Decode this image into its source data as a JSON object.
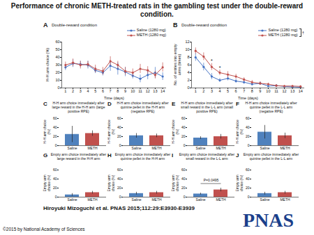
{
  "title": "Performance of chronic METH-treated rats in the gambling test under the double-reward condition.",
  "credit": "Hiroyuki Mizoguchi et al. PNAS 2015;112:29:E3930-E3939",
  "copyright": "©2015 by National Academy of Sciences",
  "logo": "PNAS",
  "chart_data": [
    {
      "type": "line",
      "panel": "A",
      "subtitle": "Double-reward condition",
      "x_label": "Time (days)",
      "y_label": "H-H arm choice (%)",
      "x": [
        1,
        2,
        3,
        4,
        5,
        6,
        7,
        8,
        9,
        10,
        11,
        12,
        13,
        14
      ],
      "xlim": [
        0.5,
        14.5
      ],
      "xticks": [
        1,
        2,
        3,
        4,
        5,
        6,
        7,
        8,
        9,
        10,
        11,
        12,
        13,
        14
      ],
      "ylim": [
        0,
        60
      ],
      "yticks": [
        0,
        10,
        20,
        30,
        40,
        50,
        60
      ],
      "series": [
        {
          "name": "Saline (1280 mg)",
          "color": "#4472c4",
          "marker": "circle",
          "values": [
            27,
            32,
            31,
            30,
            23,
            20,
            29,
            25,
            21,
            16,
            12,
            17,
            20,
            15
          ],
          "errors": [
            4,
            5,
            4,
            5,
            4,
            4,
            7,
            8,
            6,
            4,
            5,
            6,
            7,
            5
          ]
        },
        {
          "name": "METH (1280 mg)",
          "color": "#c0504d",
          "marker": "circle",
          "values": [
            30,
            33,
            30,
            31,
            25,
            22,
            35,
            30,
            22,
            20,
            25,
            23,
            17,
            27
          ],
          "errors": [
            4,
            5,
            5,
            4,
            5,
            5,
            6,
            5,
            5,
            5,
            6,
            5,
            5,
            6
          ]
        }
      ]
    },
    {
      "type": "line",
      "panel": "B",
      "subtitle": "Double-reward condition",
      "x_label": "Time (days)",
      "y_label": "No. of entries into empty arms (times)",
      "x": [
        1,
        2,
        3,
        4,
        5,
        6,
        7,
        8,
        9,
        10,
        11,
        12,
        13,
        14
      ],
      "xlim": [
        0.5,
        14.5
      ],
      "xticks": [
        1,
        2,
        3,
        4,
        5,
        6,
        7,
        8,
        9,
        10,
        11,
        12,
        13,
        14
      ],
      "ylim": [
        0,
        12
      ],
      "yticks": [
        0,
        2,
        4,
        6,
        8,
        10,
        12
      ],
      "legend_annotation": "†",
      "annotations": [
        {
          "x": 3,
          "y": 7,
          "text": "*"
        },
        {
          "x": 4,
          "y": 5.3,
          "text": "*"
        }
      ],
      "series": [
        {
          "name": "Saline (1280 mg)",
          "color": "#4472c4",
          "marker": "circle",
          "values": [
            8,
            5.5,
            3,
            2,
            2.5,
            1.8,
            1.5,
            1,
            1.2,
            0.5,
            0.6,
            0.4,
            0.3,
            0.2
          ],
          "errors": [
            1,
            1,
            0.8,
            0.5,
            0.6,
            0.5,
            0.5,
            0.4,
            0.4,
            0.3,
            0.3,
            0.2,
            0.2,
            0.2
          ]
        },
        {
          "name": "METH (1280 mg)",
          "color": "#c0504d",
          "marker": "circle",
          "values": [
            9.7,
            8.2,
            5.5,
            4,
            3.5,
            3,
            2.2,
            1.5,
            1.2,
            1,
            0.6,
            0.5,
            0.5,
            0.4
          ],
          "errors": [
            0.8,
            1,
            0.9,
            0.7,
            0.8,
            0.6,
            0.5,
            0.5,
            0.4,
            0.3,
            0.3,
            0.2,
            0.2,
            0.2
          ]
        }
      ]
    },
    {
      "type": "bar",
      "panel": "C",
      "title": "H-H arm choice immediately after large reward in the H-H arm (large positive RPE)",
      "y_label": "H-H arm choice (%)",
      "categories": [
        "Saline",
        "METH"
      ],
      "values": [
        25,
        27
      ],
      "errors": [
        18,
        6
      ],
      "colors": [
        "#4f81bd",
        "#c0504d"
      ],
      "ylim": [
        0,
        60
      ],
      "yticks": [
        0,
        20,
        40,
        60
      ]
    },
    {
      "type": "bar",
      "panel": "D",
      "title": "H-H arm choice immediately after quinine pellet in the H-H arm (negative RPE)",
      "y_label": "H-H arm choice (%)",
      "categories": [
        "Saline",
        "METH"
      ],
      "values": [
        22,
        22
      ],
      "errors": [
        5,
        4
      ],
      "colors": [
        "#4f81bd",
        "#c0504d"
      ],
      "ylim": [
        0,
        60
      ],
      "yticks": [
        0,
        20,
        40,
        60
      ]
    },
    {
      "type": "bar",
      "panel": "E",
      "title": "H-H arm choice immediately after small reward in the L-L arm (small positive RPE)",
      "y_label": "H-H arm choice (%)",
      "categories": [
        "Saline",
        "METH"
      ],
      "values": [
        17,
        20
      ],
      "errors": [
        3,
        5
      ],
      "colors": [
        "#4f81bd",
        "#c0504d"
      ],
      "ylim": [
        0,
        60
      ],
      "yticks": [
        0,
        20,
        40,
        60
      ]
    },
    {
      "type": "bar",
      "panel": "F",
      "title": "H-H arm choice immediately after quinine pellet in the L-L arm (negative RPE)",
      "y_label": "H-H arm choice (%)",
      "categories": [
        "Saline",
        "METH"
      ],
      "values": [
        30,
        22
      ],
      "errors": [
        15,
        6
      ],
      "colors": [
        "#4f81bd",
        "#c0504d"
      ],
      "ylim": [
        0,
        60
      ],
      "yticks": [
        0,
        20,
        40,
        60
      ]
    },
    {
      "type": "bar",
      "panel": "G",
      "title": "Empty arm choice immediately after large reward in the H-H arm",
      "y_label": "Empty arm choice (%)",
      "categories": [
        "Saline",
        "METH"
      ],
      "values": [
        5,
        10
      ],
      "errors": [
        3,
        3
      ],
      "colors": [
        "#4f81bd",
        "#c0504d"
      ],
      "ylim": [
        0,
        60
      ],
      "yticks": [
        0,
        20,
        40,
        60
      ]
    },
    {
      "type": "bar",
      "panel": "H",
      "title": "Empty arm choice immediately after quinine pellet in the H-H arm",
      "y_label": "Empty arm choice (%)",
      "categories": [
        "Saline",
        "METH"
      ],
      "values": [
        8,
        10
      ],
      "errors": [
        3,
        3
      ],
      "colors": [
        "#4f81bd",
        "#c0504d"
      ],
      "ylim": [
        0,
        60
      ],
      "yticks": [
        0,
        20,
        40,
        60
      ]
    },
    {
      "type": "bar",
      "panel": "I",
      "title": "Empty arm choice immediately after small reward in the L-L arm",
      "y_label": "Empty arm choice (%)",
      "categories": [
        "Saline",
        "METH"
      ],
      "values": [
        7,
        16
      ],
      "errors": [
        2,
        4
      ],
      "colors": [
        "#4f81bd",
        "#c0504d"
      ],
      "ylim": [
        0,
        60
      ],
      "yticks": [
        0,
        20,
        40,
        60
      ],
      "annotations": [
        {
          "y": 30,
          "text": "P=0.0495"
        }
      ]
    },
    {
      "type": "bar",
      "panel": "J",
      "title": "Empty arm choice immediately after quinine pellet in the L-L arm",
      "y_label": "Empty arm choice (%)",
      "categories": [
        "Saline",
        "METH"
      ],
      "values": [
        8,
        10
      ],
      "errors": [
        3,
        3
      ],
      "colors": [
        "#4f81bd",
        "#c0504d"
      ],
      "ylim": [
        0,
        60
      ],
      "yticks": [
        0,
        20,
        40,
        60
      ]
    }
  ]
}
